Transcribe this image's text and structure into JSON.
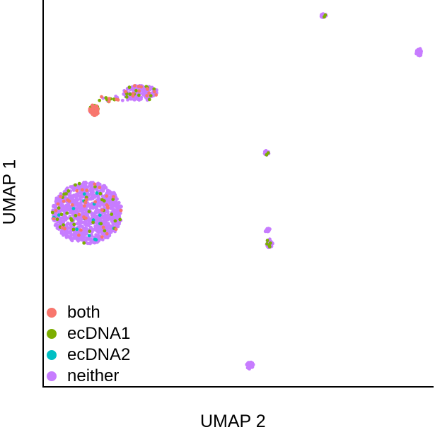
{
  "chart_data": {
    "type": "scatter",
    "title": "",
    "xlabel": "UMAP 2",
    "ylabel": "UMAP 1",
    "xlim": [
      0,
      10
    ],
    "ylim": [
      0,
      10
    ],
    "grid": false,
    "legend_position": "bottom-left",
    "series": [
      {
        "name": "both",
        "color": "#F8766D"
      },
      {
        "name": "ecDNA1",
        "color": "#7CAE00"
      },
      {
        "name": "ecDNA2",
        "color": "#00BFC4"
      },
      {
        "name": "neither",
        "color": "#C77CFF"
      }
    ],
    "clusters": [
      {
        "cx": 1.13,
        "cy": 4.5,
        "rx": 0.9,
        "ry": 0.8,
        "n": 1100,
        "mix": {
          "neither": 0.93,
          "both": 0.03,
          "ecDNA1": 0.025,
          "ecDNA2": 0.015
        }
      },
      {
        "cx": 2.5,
        "cy": 7.6,
        "rx": 0.45,
        "ry": 0.2,
        "n": 170,
        "mix": {
          "neither": 0.88,
          "both": 0.06,
          "ecDNA1": 0.06
        }
      },
      {
        "cx": 1.3,
        "cy": 7.17,
        "rx": 0.11,
        "ry": 0.12,
        "n": 90,
        "mix": {
          "ecDNA1": 0.6,
          "both": 0.3,
          "neither": 0.1
        }
      },
      {
        "cx": 1.33,
        "cy": 7.06,
        "rx": 0.08,
        "ry": 0.05,
        "n": 30,
        "mix": {
          "both": 0.9,
          "ecDNA1": 0.1
        }
      },
      {
        "cx": 1.75,
        "cy": 7.45,
        "rx": 0.45,
        "ry": 0.08,
        "n": 18,
        "mix": {
          "ecDNA1": 0.45,
          "both": 0.35,
          "neither": 0.2
        }
      },
      {
        "cx": 7.17,
        "cy": 9.6,
        "rx": 0.08,
        "ry": 0.05,
        "n": 25,
        "mix": {
          "neither": 0.85,
          "ecDNA1": 0.15
        }
      },
      {
        "cx": 9.63,
        "cy": 8.65,
        "rx": 0.08,
        "ry": 0.1,
        "n": 30,
        "mix": {
          "neither": 1.0
        }
      },
      {
        "cx": 5.73,
        "cy": 6.05,
        "rx": 0.07,
        "ry": 0.06,
        "n": 18,
        "mix": {
          "neither": 0.8,
          "ecDNA1": 0.2
        }
      },
      {
        "cx": 5.75,
        "cy": 4.05,
        "rx": 0.07,
        "ry": 0.06,
        "n": 16,
        "mix": {
          "neither": 1.0
        }
      },
      {
        "cx": 5.8,
        "cy": 3.7,
        "rx": 0.08,
        "ry": 0.12,
        "n": 28,
        "mix": {
          "neither": 0.85,
          "ecDNA1": 0.15
        }
      },
      {
        "cx": 5.3,
        "cy": 0.55,
        "rx": 0.09,
        "ry": 0.09,
        "n": 40,
        "mix": {
          "neither": 1.0
        }
      }
    ]
  }
}
